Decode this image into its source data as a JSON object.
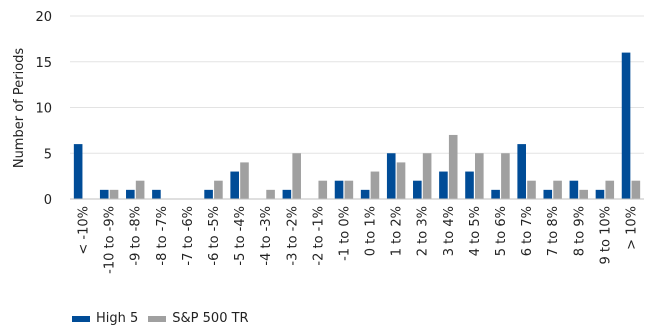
{
  "chart_data": {
    "type": "bar",
    "ylabel": "Number of Periods",
    "ylim": [
      0,
      20
    ],
    "yticks": [
      0,
      5,
      10,
      15,
      20
    ],
    "grid": "horizontal",
    "legend_position": "bottom-left",
    "categories": [
      "< -10%",
      "-10 to -9%",
      "-9 to -8%",
      "-8 to -7%",
      "-7 to -6%",
      "-6 to -5%",
      "-5 to -4%",
      "-4 to -3%",
      "-3 to -2%",
      "-2 to -1%",
      "-1 to 0%",
      "0 to 1%",
      "1 to 2%",
      "2 to 3%",
      "3 to 4%",
      "4 to 5%",
      "5 to 6%",
      "6 to 7%",
      "7 to 8%",
      "8 to 9%",
      "9 to 10%",
      "> 10%"
    ],
    "series": [
      {
        "name": "High 5",
        "color": "#004C97",
        "values": [
          6,
          1,
          1,
          1,
          0,
          1,
          3,
          0,
          1,
          0,
          2,
          1,
          5,
          2,
          3,
          3,
          1,
          6,
          1,
          2,
          1,
          16
        ]
      },
      {
        "name": "S&P 500 TR",
        "color": "#A0A0A0",
        "values": [
          0,
          1,
          2,
          0,
          0,
          2,
          4,
          1,
          5,
          2,
          2,
          3,
          4,
          5,
          7,
          5,
          5,
          2,
          2,
          1,
          2,
          2
        ]
      }
    ]
  }
}
